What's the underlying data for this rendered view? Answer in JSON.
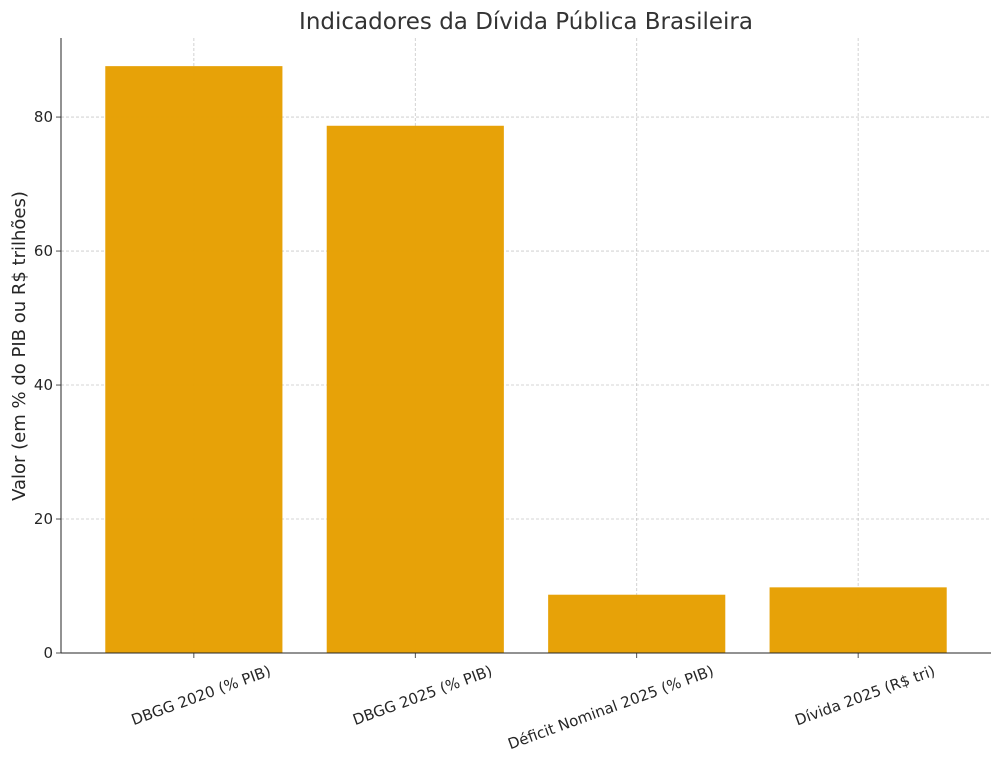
{
  "chart_data": {
    "type": "bar",
    "title": "Indicadores da Dívida Pública Brasileira",
    "xlabel": "",
    "ylabel": "Valor (em % do PIB ou R$ trilhões)",
    "categories": [
      "DBGG 2020 (% PIB)",
      "DBGG 2025 (% PIB)",
      "Déficit Nominal 2025 (% PIB)",
      "Dívida 2025 (R$ tri)"
    ],
    "values": [
      87.6,
      78.7,
      8.7,
      9.8
    ],
    "ylim": [
      0,
      91.8
    ],
    "yticks": [
      0,
      20,
      40,
      60,
      80
    ],
    "grid": true,
    "bar_color": "#E69F00"
  }
}
